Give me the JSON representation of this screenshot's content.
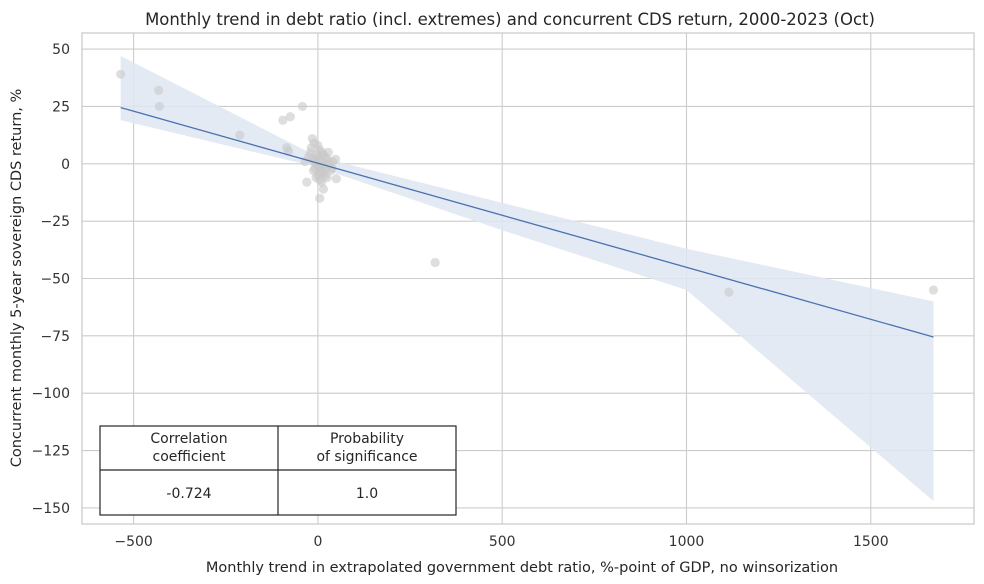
{
  "chart_data": {
    "type": "scatter",
    "title": "Monthly trend in debt ratio (incl. extremes) and concurrent CDS return, 2000-2023 (Oct)",
    "xlabel": "Monthly trend in extrapolated government debt ratio, %-point of GDP, no winsorization",
    "ylabel": "Concurrent monthly 5-year sovereign CDS return, %",
    "xlim": [
      -640,
      1780
    ],
    "ylim": [
      -157,
      57
    ],
    "xticks": [
      -500,
      0,
      500,
      1000,
      1500
    ],
    "yticks": [
      50,
      25,
      0,
      -25,
      -50,
      -75,
      -100,
      -125,
      -150
    ],
    "xtick_labels": [
      "−500",
      "0",
      "500",
      "1000",
      "1500"
    ],
    "ytick_labels": [
      "50",
      "25",
      "0",
      "−25",
      "−50",
      "−75",
      "−100",
      "−125",
      "−150"
    ],
    "grid": true,
    "colors": {
      "points": "#c8c8c8",
      "line": "#4c72b0",
      "band": "#dfe6f2",
      "grid": "#cccccc",
      "frame": "#cccccc"
    },
    "points": [
      {
        "x": -535,
        "y": 39
      },
      {
        "x": -432,
        "y": 32
      },
      {
        "x": -430,
        "y": 25
      },
      {
        "x": -212,
        "y": 12.5
      },
      {
        "x": -95,
        "y": 19
      },
      {
        "x": -75,
        "y": 20.5
      },
      {
        "x": -42,
        "y": 25
      },
      {
        "x": -85,
        "y": 7
      },
      {
        "x": -80,
        "y": 5.5
      },
      {
        "x": -30,
        "y": -8
      },
      {
        "x": 5,
        "y": -15
      },
      {
        "x": 15,
        "y": -11
      },
      {
        "x": 50,
        "y": -6.5
      },
      {
        "x": 48,
        "y": 2
      },
      {
        "x": 38,
        "y": -2
      },
      {
        "x": -15,
        "y": 11
      },
      {
        "x": -10,
        "y": 9
      },
      {
        "x": 0,
        "y": 8
      },
      {
        "x": 5,
        "y": 6
      },
      {
        "x": 10,
        "y": 5
      },
      {
        "x": 15,
        "y": 4
      },
      {
        "x": 20,
        "y": 3
      },
      {
        "x": 25,
        "y": 2
      },
      {
        "x": -20,
        "y": 5
      },
      {
        "x": -25,
        "y": 3
      },
      {
        "x": -15,
        "y": 2
      },
      {
        "x": -10,
        "y": 1
      },
      {
        "x": -5,
        "y": 0
      },
      {
        "x": 0,
        "y": -1
      },
      {
        "x": 5,
        "y": -2
      },
      {
        "x": 10,
        "y": -3
      },
      {
        "x": 15,
        "y": -4
      },
      {
        "x": 20,
        "y": -5
      },
      {
        "x": 0,
        "y": -5
      },
      {
        "x": -5,
        "y": -6
      },
      {
        "x": 5,
        "y": -7
      },
      {
        "x": 10,
        "y": -8
      },
      {
        "x": 30,
        "y": 0
      },
      {
        "x": 35,
        "y": -3
      },
      {
        "x": 28,
        "y": 5
      },
      {
        "x": -5,
        "y": 4
      },
      {
        "x": 0,
        "y": 3
      },
      {
        "x": 8,
        "y": 1
      },
      {
        "x": 12,
        "y": -1
      },
      {
        "x": 18,
        "y": 0
      },
      {
        "x": 22,
        "y": -2
      },
      {
        "x": -12,
        "y": -3
      },
      {
        "x": -8,
        "y": -2
      },
      {
        "x": 3,
        "y": 2
      },
      {
        "x": 7,
        "y": -4
      },
      {
        "x": -18,
        "y": 7
      },
      {
        "x": 25,
        "y": -6
      },
      {
        "x": 40,
        "y": 1
      },
      {
        "x": -35,
        "y": 1
      },
      {
        "x": 318,
        "y": -43
      },
      {
        "x": 1115,
        "y": -56
      },
      {
        "x": 1670,
        "y": -55
      }
    ],
    "regression": {
      "x": [
        -535,
        1670
      ],
      "y": [
        24.5,
        -75.5
      ]
    },
    "confidence_band": {
      "x": [
        -535,
        0,
        500,
        1000,
        1670
      ],
      "upper": [
        47,
        3,
        -17,
        -37,
        -60
      ],
      "lower": [
        19,
        -1.5,
        -29,
        -55,
        -147
      ]
    },
    "table": {
      "headers": [
        "Correlation\ncoefficient",
        "Probability\nof significance"
      ],
      "values": [
        "-0.724",
        "1.0"
      ]
    }
  }
}
